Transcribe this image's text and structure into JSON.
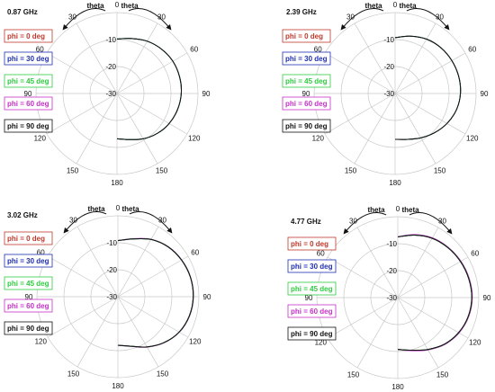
{
  "theta_label": "theta",
  "angle_labels": [
    "0",
    "30",
    "60",
    "90",
    "120",
    "150",
    "180",
    "150",
    "120",
    "90",
    "60",
    "30"
  ],
  "radial_labels": [
    "-10",
    "-20",
    "-30"
  ],
  "legend": [
    {
      "label": "phi = 0  deg",
      "color": "#c0392b"
    },
    {
      "label": "phi = 30 deg",
      "color": "#1f2fb0"
    },
    {
      "label": "phi = 45 deg",
      "color": "#2ecc40"
    },
    {
      "label": "phi = 60 deg",
      "color": "#c531c8"
    },
    {
      "label": "phi = 90 deg",
      "color": "#111111"
    }
  ],
  "chart_data": [
    {
      "type": "polar",
      "title": "0.87 GHz",
      "r_ticks": [
        -10,
        -20,
        -30
      ],
      "r_range": [
        -30,
        0
      ],
      "grid": true,
      "series": [
        {
          "name": "phi = 0  deg",
          "theta_deg": [
            0,
            15,
            30,
            45,
            60,
            75,
            90,
            105,
            120,
            135,
            150,
            165,
            180
          ],
          "gain_db": [
            -9.8,
            -8.9,
            -7.6,
            -6.7,
            -6.1,
            -6.0,
            -6.2,
            -6.8,
            -7.7,
            -9.0,
            -10.6,
            -12.3,
            -13.2
          ]
        },
        {
          "name": "phi = 30 deg",
          "theta_deg": [
            0,
            15,
            30,
            45,
            60,
            75,
            90,
            105,
            120,
            135,
            150,
            165,
            180
          ],
          "gain_db": [
            -9.8,
            -8.9,
            -7.6,
            -6.7,
            -6.1,
            -6.0,
            -6.2,
            -6.8,
            -7.7,
            -9.0,
            -10.6,
            -12.3,
            -13.2
          ]
        },
        {
          "name": "phi = 45 deg",
          "theta_deg": [
            0,
            15,
            30,
            45,
            60,
            75,
            90,
            105,
            120,
            135,
            150,
            165,
            180
          ],
          "gain_db": [
            -9.8,
            -8.9,
            -7.6,
            -6.7,
            -6.1,
            -6.0,
            -6.2,
            -6.8,
            -7.7,
            -9.0,
            -10.6,
            -12.3,
            -13.2
          ]
        },
        {
          "name": "phi = 60 deg",
          "theta_deg": [
            0,
            15,
            30,
            45,
            60,
            75,
            90,
            105,
            120,
            135,
            150,
            165,
            180
          ],
          "gain_db": [
            -9.8,
            -8.9,
            -7.6,
            -6.7,
            -6.1,
            -6.0,
            -6.2,
            -6.8,
            -7.7,
            -9.0,
            -10.6,
            -12.3,
            -13.2
          ]
        },
        {
          "name": "phi = 90 deg",
          "theta_deg": [
            0,
            15,
            30,
            45,
            60,
            75,
            90,
            105,
            120,
            135,
            150,
            165,
            180
          ],
          "gain_db": [
            -9.8,
            -8.9,
            -7.6,
            -6.7,
            -6.1,
            -6.0,
            -6.2,
            -6.8,
            -7.7,
            -9.0,
            -10.6,
            -12.3,
            -13.2
          ]
        }
      ]
    },
    {
      "type": "polar",
      "title": "2.39 GHz",
      "r_ticks": [
        -10,
        -20,
        -30
      ],
      "r_range": [
        -30,
        0
      ],
      "grid": true,
      "series": [
        {
          "name": "phi = 0  deg",
          "theta_deg": [
            0,
            15,
            30,
            45,
            60,
            75,
            90,
            105,
            120,
            135,
            150,
            165,
            180
          ],
          "gain_db": [
            -9.3,
            -8.0,
            -6.7,
            -6.0,
            -5.7,
            -5.6,
            -5.8,
            -6.5,
            -7.8,
            -9.4,
            -11.0,
            -12.4,
            -13.0
          ]
        },
        {
          "name": "phi = 30 deg",
          "theta_deg": [
            0,
            15,
            30,
            45,
            60,
            75,
            90,
            105,
            120,
            135,
            150,
            165,
            180
          ],
          "gain_db": [
            -9.3,
            -8.0,
            -6.7,
            -6.0,
            -5.7,
            -5.6,
            -5.8,
            -6.5,
            -7.8,
            -9.4,
            -11.0,
            -12.4,
            -13.0
          ]
        },
        {
          "name": "phi = 45 deg",
          "theta_deg": [
            0,
            15,
            30,
            45,
            60,
            75,
            90,
            105,
            120,
            135,
            150,
            165,
            180
          ],
          "gain_db": [
            -9.3,
            -8.0,
            -6.7,
            -6.0,
            -5.7,
            -5.6,
            -5.8,
            -6.5,
            -7.8,
            -9.4,
            -11.0,
            -12.4,
            -13.0
          ]
        },
        {
          "name": "phi = 60 deg",
          "theta_deg": [
            0,
            15,
            30,
            45,
            60,
            75,
            90,
            105,
            120,
            135,
            150,
            165,
            180
          ],
          "gain_db": [
            -9.3,
            -8.0,
            -6.7,
            -6.0,
            -5.7,
            -5.6,
            -5.8,
            -6.5,
            -7.8,
            -9.4,
            -11.0,
            -12.4,
            -13.0
          ]
        },
        {
          "name": "phi = 90 deg",
          "theta_deg": [
            0,
            15,
            30,
            45,
            60,
            75,
            90,
            105,
            120,
            135,
            150,
            165,
            180
          ],
          "gain_db": [
            -9.3,
            -8.0,
            -6.7,
            -6.0,
            -5.7,
            -5.6,
            -5.8,
            -6.5,
            -7.8,
            -9.4,
            -11.0,
            -12.4,
            -13.0
          ]
        }
      ]
    },
    {
      "type": "polar",
      "title": "3.02 GHz",
      "r_ticks": [
        -10,
        -20,
        -30
      ],
      "r_range": [
        -30,
        0
      ],
      "grid": true,
      "series": [
        {
          "name": "phi = 0  deg",
          "theta_deg": [
            0,
            15,
            30,
            45,
            60,
            75,
            90,
            105,
            120,
            135,
            150,
            165,
            180
          ],
          "gain_db": [
            -9.2,
            -7.8,
            -5.5,
            -3.8,
            -2.8,
            -2.2,
            -2.1,
            -2.6,
            -3.8,
            -5.9,
            -8.5,
            -11.0,
            -12.0
          ]
        },
        {
          "name": "phi = 30 deg",
          "theta_deg": [
            0,
            15,
            30,
            45,
            60,
            75,
            90,
            105,
            120,
            135,
            150,
            165,
            180
          ],
          "gain_db": [
            -9.2,
            -7.8,
            -5.5,
            -3.8,
            -2.8,
            -2.2,
            -2.1,
            -2.6,
            -3.8,
            -5.9,
            -8.5,
            -11.0,
            -12.0
          ]
        },
        {
          "name": "phi = 45 deg",
          "theta_deg": [
            0,
            15,
            30,
            45,
            60,
            75,
            90,
            105,
            120,
            135,
            150,
            165,
            180
          ],
          "gain_db": [
            -9.2,
            -7.8,
            -5.5,
            -3.8,
            -2.8,
            -2.2,
            -2.1,
            -2.6,
            -3.8,
            -5.9,
            -8.5,
            -11.0,
            -12.0
          ]
        },
        {
          "name": "phi = 60 deg",
          "theta_deg": [
            0,
            15,
            30,
            45,
            60,
            75,
            90,
            105,
            120,
            135,
            150,
            165,
            180
          ],
          "gain_db": [
            -9.2,
            -7.7,
            -5.4,
            -3.7,
            -2.7,
            -2.1,
            -2.0,
            -2.5,
            -3.7,
            -5.8,
            -8.4,
            -10.9,
            -12.0
          ]
        },
        {
          "name": "phi = 90 deg",
          "theta_deg": [
            0,
            15,
            30,
            45,
            60,
            75,
            90,
            105,
            120,
            135,
            150,
            165,
            180
          ],
          "gain_db": [
            -9.2,
            -7.8,
            -5.5,
            -3.8,
            -2.8,
            -2.2,
            -2.1,
            -2.6,
            -3.8,
            -5.9,
            -8.5,
            -11.0,
            -12.0
          ]
        }
      ]
    },
    {
      "type": "polar",
      "title": "4.77 GHz",
      "r_ticks": [
        -10,
        -20,
        -30
      ],
      "r_range": [
        -30,
        0
      ],
      "grid": true,
      "series": [
        {
          "name": "phi = 0  deg",
          "theta_deg": [
            0,
            15,
            30,
            45,
            60,
            75,
            90,
            105,
            120,
            135,
            150,
            165,
            180
          ],
          "gain_db": [
            -7.5,
            -6.0,
            -4.6,
            -3.8,
            -3.2,
            -2.8,
            -2.6,
            -3.0,
            -4.0,
            -5.6,
            -7.8,
            -9.8,
            -10.8
          ]
        },
        {
          "name": "phi = 30 deg",
          "theta_deg": [
            0,
            15,
            30,
            45,
            60,
            75,
            90,
            105,
            120,
            135,
            150,
            165,
            180
          ],
          "gain_db": [
            -7.5,
            -6.0,
            -4.6,
            -3.8,
            -3.2,
            -2.8,
            -2.6,
            -3.0,
            -4.0,
            -5.6,
            -7.8,
            -9.8,
            -10.8
          ]
        },
        {
          "name": "phi = 45 deg",
          "theta_deg": [
            0,
            15,
            30,
            45,
            60,
            75,
            90,
            105,
            120,
            135,
            150,
            165,
            180
          ],
          "gain_db": [
            -7.5,
            -6.0,
            -4.6,
            -3.8,
            -3.2,
            -2.8,
            -2.6,
            -3.0,
            -4.0,
            -5.6,
            -7.8,
            -9.8,
            -10.8
          ]
        },
        {
          "name": "phi = 60 deg",
          "theta_deg": [
            0,
            15,
            30,
            45,
            60,
            75,
            90,
            105,
            120,
            135,
            150,
            165,
            180
          ],
          "gain_db": [
            -7.4,
            -5.8,
            -4.4,
            -3.6,
            -3.0,
            -2.6,
            -2.4,
            -2.8,
            -3.8,
            -5.4,
            -7.6,
            -9.6,
            -10.7
          ]
        },
        {
          "name": "phi = 90 deg",
          "theta_deg": [
            0,
            15,
            30,
            45,
            60,
            75,
            90,
            105,
            120,
            135,
            150,
            165,
            180
          ],
          "gain_db": [
            -7.5,
            -6.0,
            -4.6,
            -3.8,
            -3.2,
            -2.8,
            -2.6,
            -3.0,
            -4.0,
            -5.6,
            -7.8,
            -9.8,
            -10.8
          ]
        }
      ]
    }
  ]
}
